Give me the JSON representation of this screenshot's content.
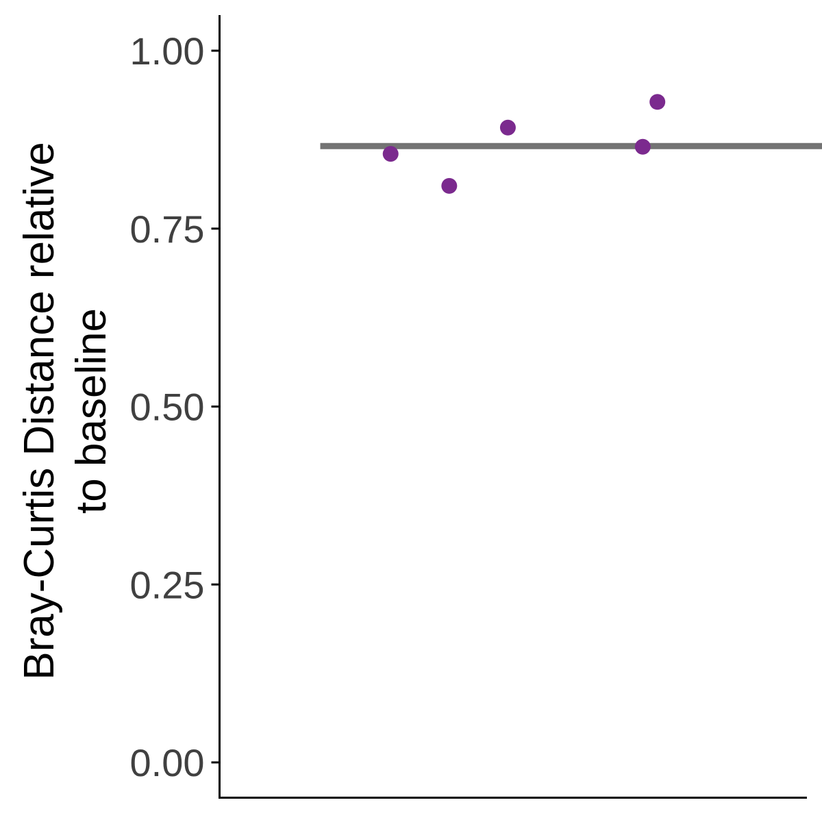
{
  "chart_data": {
    "type": "scatter",
    "title": "",
    "xlabel": "",
    "ylabel": "Bray-Curtis Distance relative to baseline",
    "ylabel_lines": [
      "Bray-Curtis Distance relative",
      "to baseline"
    ],
    "ylim": [
      -0.05,
      1.05
    ],
    "yticks": [
      0.0,
      0.25,
      0.5,
      0.75,
      1.0
    ],
    "ytick_labels": [
      "0.00",
      "0.25",
      "0.50",
      "0.75",
      "1.00"
    ],
    "grid": false,
    "legend": "none",
    "points": [
      {
        "x": 0.29,
        "y": 0.855
      },
      {
        "x": 0.39,
        "y": 0.81
      },
      {
        "x": 0.49,
        "y": 0.892
      },
      {
        "x": 0.72,
        "y": 0.865
      },
      {
        "x": 0.745,
        "y": 0.928
      }
    ],
    "mean_line": {
      "y": 0.866,
      "x_start": 0.17,
      "x_end": 1.17
    },
    "point_color": "#7B2A8E",
    "line_color": "#737373",
    "axis_color": "#000000",
    "tick_label_color": "#404040"
  }
}
